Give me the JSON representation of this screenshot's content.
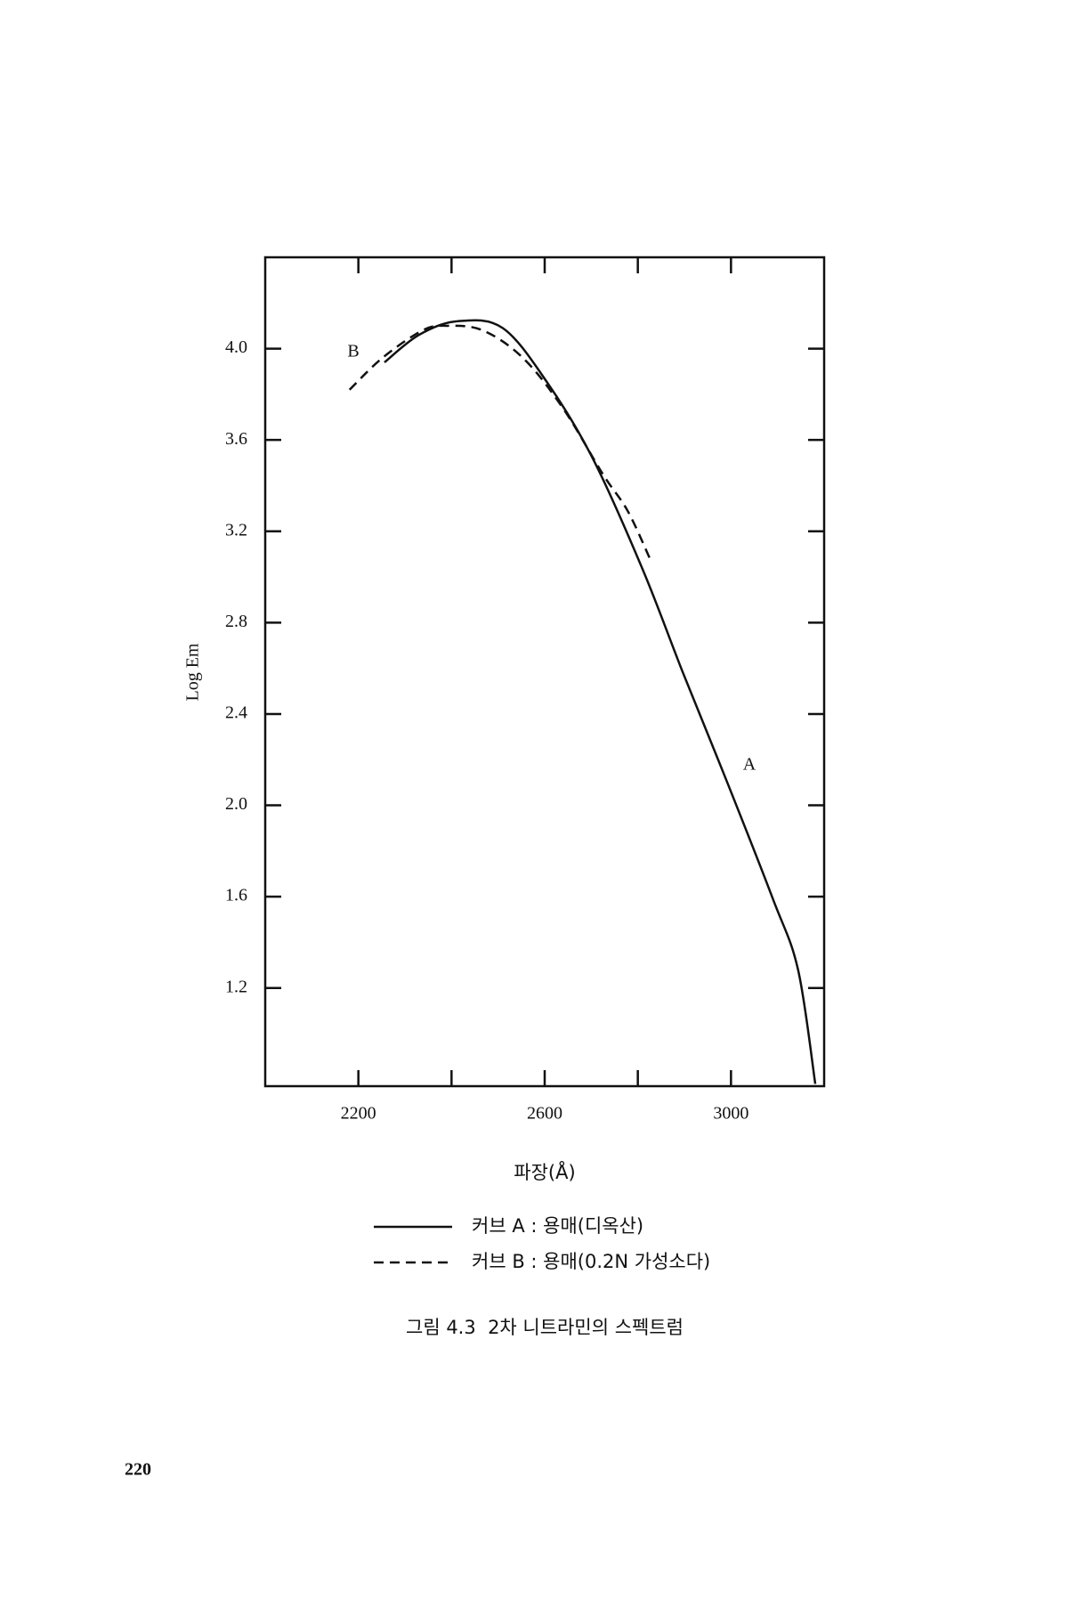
{
  "chart_data": {
    "type": "line",
    "x_label": "파장(Å)",
    "y_label": "Log Em",
    "caption": "그림 4.3  2차 니트라민의 스펙트럼",
    "page_number": "220",
    "xlim": [
      2000,
      3200
    ],
    "xticks": [
      2200,
      2600,
      3000
    ],
    "minor_xticks": [
      2400,
      2800
    ],
    "ylim": [
      0.77,
      4.4
    ],
    "yticks": [
      1.2,
      1.6,
      {
        "value": 2,
        "label": "2.0"
      },
      2.4,
      2.8,
      3.2,
      3.6,
      {
        "value": 4,
        "label": "4.0"
      }
    ],
    "annotations": [
      "A",
      "B"
    ],
    "series": [
      {
        "name": "커브 A : 용매(디옥산)",
        "color": "#111111",
        "line_style": "solid",
        "x": [
          2256,
          2330,
          2413,
          2510,
          2606,
          2703,
          2811,
          2897,
          2994,
          3090,
          3144,
          3181
        ],
        "values": [
          3.94,
          4.06,
          4.12,
          4.09,
          3.85,
          3.52,
          3.03,
          2.58,
          2.09,
          1.59,
          1.28,
          0.78
        ]
      },
      {
        "name": "커브 B : 용매(0.2N 가성소다)",
        "color": "#111111",
        "line_style": "dashed",
        "x": [
          2181,
          2252,
          2338,
          2391,
          2467,
          2553,
          2639,
          2725,
          2778,
          2826
        ],
        "values": [
          3.82,
          3.96,
          4.08,
          4.1,
          4.08,
          3.96,
          3.74,
          3.45,
          3.29,
          3.08
        ]
      }
    ]
  }
}
